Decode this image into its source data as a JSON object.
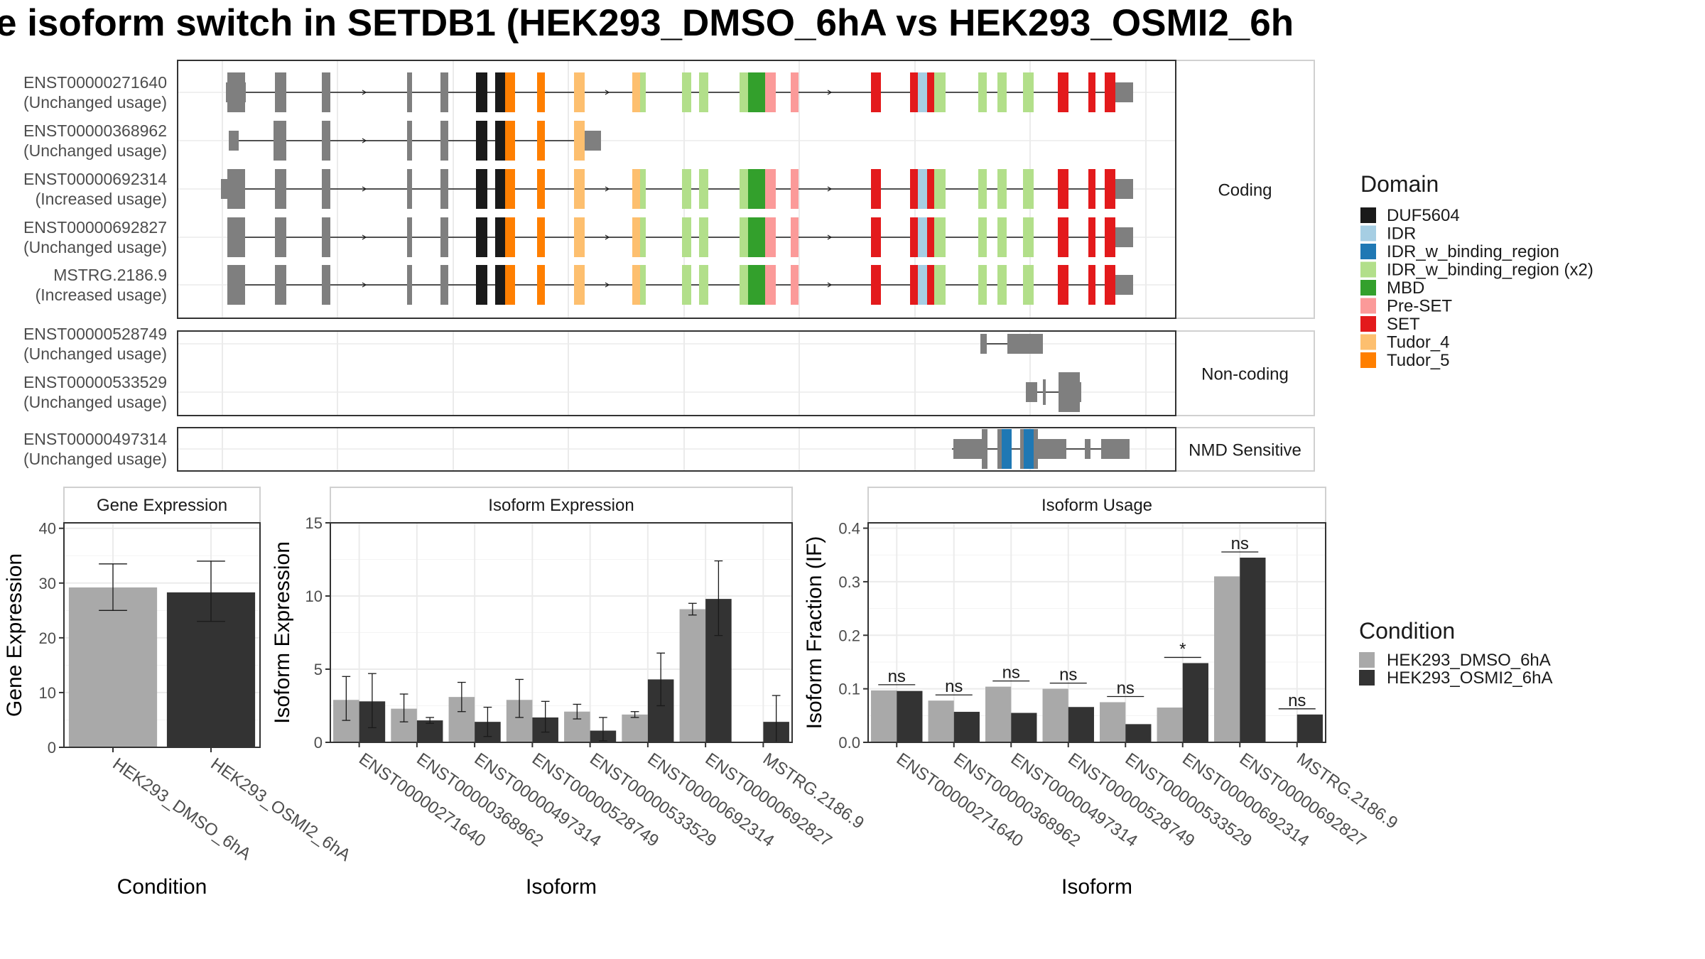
{
  "title": "e isoform switch in SETDB1 (HEK293_DMSO_6hA vs HEK293_OSMI2_6h",
  "colors": {
    "exon_gray": "#7f7f7f",
    "grid": "#ebebeb",
    "strip_bg": "#ffffff",
    "border": "#333333",
    "dmso": "#a9a9a9",
    "osmi2": "#333333"
  },
  "domain_legend": {
    "title": "Domain",
    "items": [
      {
        "label": "DUF5604",
        "color": "#1a1a1a"
      },
      {
        "label": "IDR",
        "color": "#a6cee3"
      },
      {
        "label": "IDR_w_binding_region",
        "color": "#1f78b4"
      },
      {
        "label": "IDR_w_binding_region (x2)",
        "color": "#b2df8a"
      },
      {
        "label": "MBD",
        "color": "#33a02c"
      },
      {
        "label": "Pre-SET",
        "color": "#fb9a99"
      },
      {
        "label": "SET",
        "color": "#e31a1c"
      },
      {
        "label": "Tudor_4",
        "color": "#fdbf6f"
      },
      {
        "label": "Tudor_5",
        "color": "#ff7f00"
      }
    ]
  },
  "condition_legend": {
    "title": "Condition",
    "items": [
      {
        "label": "HEK293_DMSO_6hA",
        "color": "#a9a9a9"
      },
      {
        "label": "HEK293_OSMI2_6hA",
        "color": "#333333"
      }
    ]
  },
  "structure": {
    "panels": [
      {
        "label": "Coding",
        "isoforms": [
          {
            "id": "ENST00000271640",
            "usage": "(Unchanged usage)"
          },
          {
            "id": "ENST00000368962",
            "usage": "(Unchanged usage)"
          },
          {
            "id": "ENST00000692314",
            "usage": "(Increased usage)"
          },
          {
            "id": "ENST00000692827",
            "usage": "(Unchanged usage)"
          },
          {
            "id": "MSTRG.2186.9",
            "usage": "(Increased usage)"
          }
        ]
      },
      {
        "label": "Non-coding",
        "isoforms": [
          {
            "id": "ENST00000528749",
            "usage": "(Unchanged usage)"
          },
          {
            "id": "ENST00000533529",
            "usage": "(Unchanged usage)"
          }
        ]
      },
      {
        "label": "NMD Sensitive",
        "isoforms": [
          {
            "id": "ENST00000497314",
            "usage": "(Unchanged usage)"
          }
        ]
      }
    ]
  },
  "chart_data": [
    {
      "type": "bar",
      "title": "Gene Expression",
      "xlabel": "Condition",
      "ylabel": "Gene Expression",
      "ylim": [
        0,
        41
      ],
      "yticks": [
        0,
        10,
        20,
        30,
        40
      ],
      "categories": [
        "HEK293_DMSO_6hA",
        "HEK293_OSMI2_6hA"
      ],
      "series": [
        {
          "name": "Condition",
          "values": [
            29.2,
            28.3
          ],
          "err_low": [
            25.0,
            23.0
          ],
          "err_high": [
            33.5,
            34.0
          ]
        }
      ]
    },
    {
      "type": "bar",
      "title": "Isoform Expression",
      "xlabel": "Isoform",
      "ylabel": "Isoform Expression",
      "ylim": [
        0,
        15
      ],
      "yticks": [
        0,
        5,
        10,
        15
      ],
      "categories": [
        "ENST00000271640",
        "ENST00000368962",
        "ENST00000497314",
        "ENST00000528749",
        "ENST00000533529",
        "ENST00000692314",
        "ENST00000692827",
        "MSTRG.2186.9"
      ],
      "series": [
        {
          "name": "HEK293_DMSO_6hA",
          "values": [
            2.9,
            2.3,
            3.1,
            2.9,
            2.1,
            1.9,
            9.1,
            0
          ],
          "err_low": [
            1.5,
            1.4,
            2.1,
            1.7,
            1.6,
            1.7,
            8.7,
            0
          ],
          "err_high": [
            4.5,
            3.3,
            4.1,
            4.3,
            2.6,
            2.1,
            9.5,
            0
          ]
        },
        {
          "name": "HEK293_OSMI2_6hA",
          "values": [
            2.8,
            1.5,
            1.4,
            1.7,
            0.8,
            4.3,
            9.8,
            1.4
          ],
          "err_low": [
            1.0,
            1.3,
            0.4,
            0.7,
            0.1,
            2.5,
            7.3,
            0.0
          ],
          "err_high": [
            4.7,
            1.7,
            2.4,
            2.8,
            1.7,
            6.1,
            12.4,
            3.2
          ]
        }
      ]
    },
    {
      "type": "bar",
      "title": "Isoform Usage",
      "xlabel": "Isoform",
      "ylabel": "Isoform Fraction (IF)",
      "ylim": [
        0,
        0.41
      ],
      "yticks": [
        0.0,
        0.1,
        0.2,
        0.3,
        0.4
      ],
      "categories": [
        "ENST00000271640",
        "ENST00000368962",
        "ENST00000497314",
        "ENST00000528749",
        "ENST00000533529",
        "ENST00000692314",
        "ENST00000692827",
        "MSTRG.2186.9"
      ],
      "series": [
        {
          "name": "HEK293_DMSO_6hA",
          "values": [
            0.097,
            0.078,
            0.104,
            0.1,
            0.075,
            0.065,
            0.31,
            0
          ]
        },
        {
          "name": "HEK293_OSMI2_6hA",
          "values": [
            0.096,
            0.057,
            0.055,
            0.066,
            0.034,
            0.148,
            0.345,
            0.052
          ]
        }
      ],
      "significance": [
        "ns",
        "ns",
        "ns",
        "ns",
        "ns",
        "*",
        "ns",
        "ns"
      ]
    }
  ]
}
